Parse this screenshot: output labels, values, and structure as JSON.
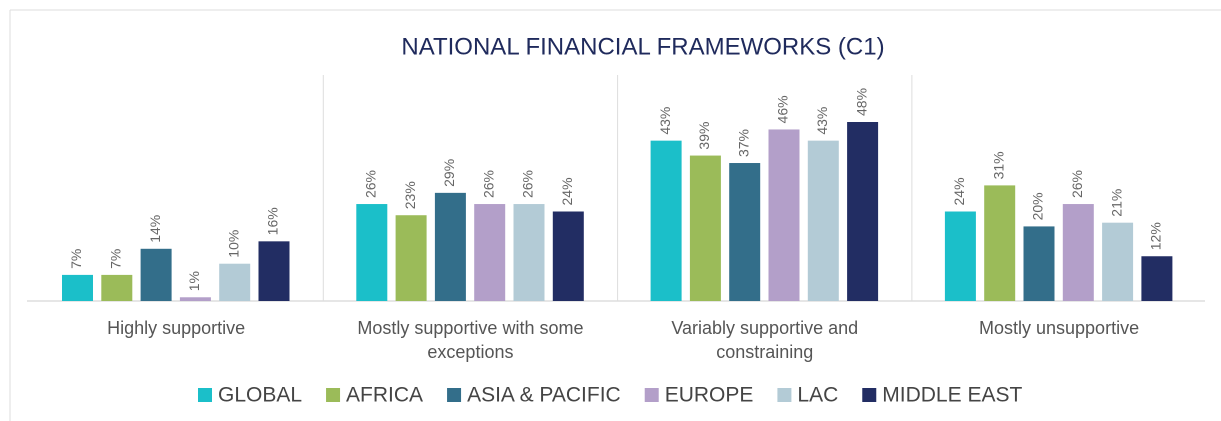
{
  "chart_data": {
    "type": "bar",
    "title": "NATIONAL FINANCIAL FRAMEWORKS (C1)",
    "categories": [
      "Highly supportive",
      "Mostly supportive with some exceptions",
      "Variably supportive and constraining",
      "Mostly unsupportive"
    ],
    "series": [
      {
        "name": "GLOBAL",
        "color": "#1bbfc9",
        "values": [
          7,
          26,
          43,
          24
        ],
        "value_labels": [
          "7%",
          "26%",
          "43%",
          "24%"
        ]
      },
      {
        "name": "AFRICA",
        "color": "#9bbb59",
        "values": [
          7,
          23,
          39,
          31
        ],
        "value_labels": [
          "7%",
          "23%",
          "39%",
          "31%"
        ]
      },
      {
        "name": "ASIA & PACIFIC",
        "color": "#336e8a",
        "values": [
          14,
          29,
          37,
          20
        ],
        "value_labels": [
          "14%",
          "29%",
          "37%",
          "20%"
        ]
      },
      {
        "name": "EUROPE",
        "color": "#b39fc9",
        "values": [
          1,
          26,
          46,
          26
        ],
        "value_labels": [
          "1%",
          "26%",
          "46%",
          "26%"
        ]
      },
      {
        "name": "LAC",
        "color": "#b3cbd6",
        "values": [
          10,
          26,
          43,
          21
        ],
        "value_labels": [
          "10%",
          "26%",
          "43%",
          "21%"
        ]
      },
      {
        "name": "MIDDLE EAST",
        "color": "#222d63",
        "values": [
          16,
          24,
          48,
          12
        ],
        "value_labels": [
          "16%",
          "24%",
          "48%",
          "12%"
        ]
      }
    ]
  }
}
